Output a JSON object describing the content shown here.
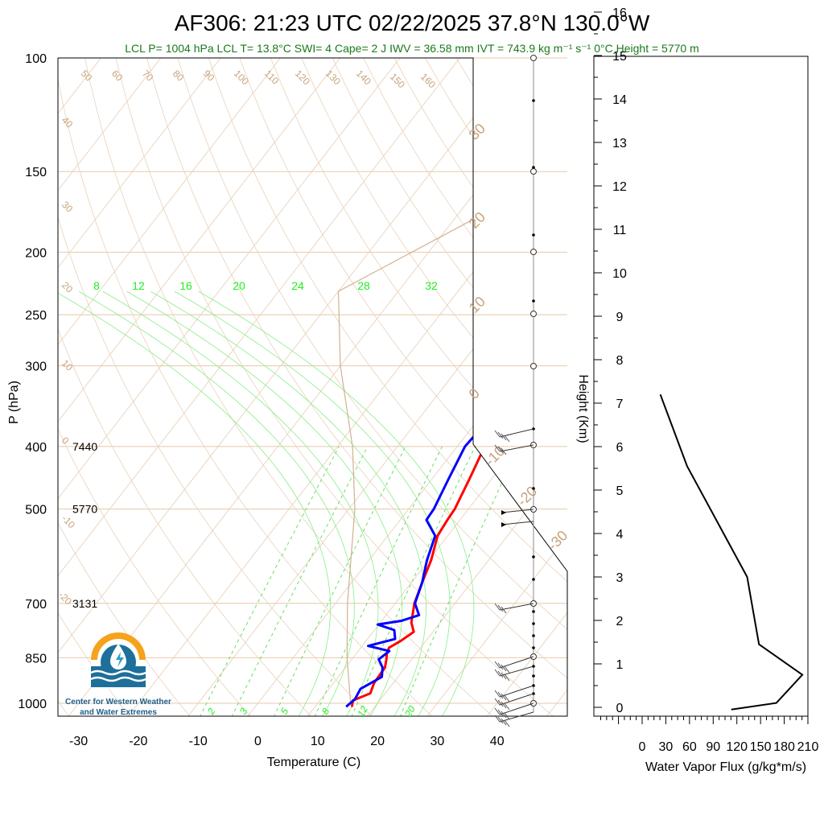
{
  "header": {
    "title": "AF306: 21:23 UTC 02/22/2025  37.8°N 130.0°W",
    "indices": "LCL P= 1004 hPa  LCL T= 13.8°C  SWI= 4  Cape= 2 J  IWV = 36.58 mm  IVT = 743.9 kg m⁻¹ s⁻¹  0°C Height = 5770 m"
  },
  "logo": {
    "line1": "Center for Western Weather",
    "line2": "and Water Extremes",
    "colors": {
      "orange": "#f6a21c",
      "blue": "#1e6f9a",
      "teal": "#2a9fc4"
    }
  },
  "colors": {
    "temperature": "#ff0000",
    "dewpoint": "#0000ff",
    "dry_adiabat": "#d8b898",
    "mixing_ratio": "#33dd33",
    "isobar": "#e8c8a8",
    "info_text": "#1a7a1a"
  },
  "chart_data": [
    {
      "type": "line",
      "name": "skew-t",
      "xlabel": "Temperature (C)",
      "ylabel": "P (hPa)",
      "x_ticks": [
        "-30",
        "-20",
        "-10",
        "0",
        "10",
        "20",
        "30",
        "40"
      ],
      "p_ticks": [
        "100",
        "150",
        "200",
        "250",
        "300",
        "400",
        "500",
        "700",
        "850",
        "1000"
      ],
      "height_labels": [
        {
          "p": 400,
          "text": "7440"
        },
        {
          "p": 500,
          "text": "5770"
        },
        {
          "p": 700,
          "text": "3131"
        }
      ],
      "mixing_ratio_top_labels": [
        "8",
        "12",
        "16",
        "20",
        "24",
        "28",
        "32"
      ],
      "mixing_ratio_bottom_labels": [
        "2",
        "3",
        "5",
        "8",
        "12",
        "20"
      ],
      "temperature_profile": [
        {
          "p": 1013,
          "t": 16.2
        },
        {
          "p": 990,
          "t": 15.5
        },
        {
          "p": 965,
          "t": 17.5
        },
        {
          "p": 930,
          "t": 16.8
        },
        {
          "p": 880,
          "t": 16.6
        },
        {
          "p": 855,
          "t": 15.8
        },
        {
          "p": 840,
          "t": 15.2
        },
        {
          "p": 820,
          "t": 14.7
        },
        {
          "p": 800,
          "t": 15.8
        },
        {
          "p": 775,
          "t": 16.8
        },
        {
          "p": 750,
          "t": 15.2
        },
        {
          "p": 700,
          "t": 13.2
        },
        {
          "p": 650,
          "t": 11.8
        },
        {
          "p": 600,
          "t": 10.4
        },
        {
          "p": 550,
          "t": 8.3
        },
        {
          "p": 520,
          "t": 7.9
        },
        {
          "p": 500,
          "t": 7.7
        },
        {
          "p": 450,
          "t": 6.3
        },
        {
          "p": 400,
          "t": 4.6
        },
        {
          "p": 375,
          "t": 4.5
        }
      ],
      "dewpoint_profile": [
        {
          "p": 1012,
          "t": 15.2
        },
        {
          "p": 985,
          "t": 15.7
        },
        {
          "p": 950,
          "t": 15.3
        },
        {
          "p": 910,
          "t": 17.3
        },
        {
          "p": 880,
          "t": 16.2
        },
        {
          "p": 855,
          "t": 14.5
        },
        {
          "p": 830,
          "t": 15.2
        },
        {
          "p": 815,
          "t": 11.0
        },
        {
          "p": 795,
          "t": 14.6
        },
        {
          "p": 770,
          "t": 13.3
        },
        {
          "p": 755,
          "t": 9.8
        },
        {
          "p": 745,
          "t": 13.3
        },
        {
          "p": 730,
          "t": 15.5
        },
        {
          "p": 700,
          "t": 13.3
        },
        {
          "p": 650,
          "t": 11.8
        },
        {
          "p": 600,
          "t": 9.7
        },
        {
          "p": 550,
          "t": 7.9
        },
        {
          "p": 520,
          "t": 4.4
        },
        {
          "p": 500,
          "t": 4.2
        },
        {
          "p": 450,
          "t": 2.8
        },
        {
          "p": 400,
          "t": 1.3
        },
        {
          "p": 385,
          "t": 1.5
        }
      ]
    },
    {
      "type": "line",
      "name": "water-vapor-flux",
      "xlabel": "Water Vapor Flux (g/kg*m/s)",
      "ylabel": "Height (Km)",
      "x_ticks": [
        "0",
        "30",
        "60",
        "90",
        "120",
        "150",
        "180",
        "210"
      ],
      "y_ticks": [
        "0",
        "1",
        "2",
        "3",
        "4",
        "5",
        "6",
        "7",
        "8",
        "9",
        "10",
        "11",
        "12",
        "13",
        "14",
        "15",
        "16"
      ],
      "xlim": [
        0,
        210
      ],
      "ylim": [
        -0.2,
        16.3
      ],
      "points": [
        {
          "x": 113,
          "y": -0.05
        },
        {
          "x": 170,
          "y": 0.1
        },
        {
          "x": 203,
          "y": 0.75
        },
        {
          "x": 148,
          "y": 1.45
        },
        {
          "x": 133,
          "y": 3.0
        },
        {
          "x": 57,
          "y": 5.55
        },
        {
          "x": 23,
          "y": 7.2
        }
      ]
    }
  ]
}
